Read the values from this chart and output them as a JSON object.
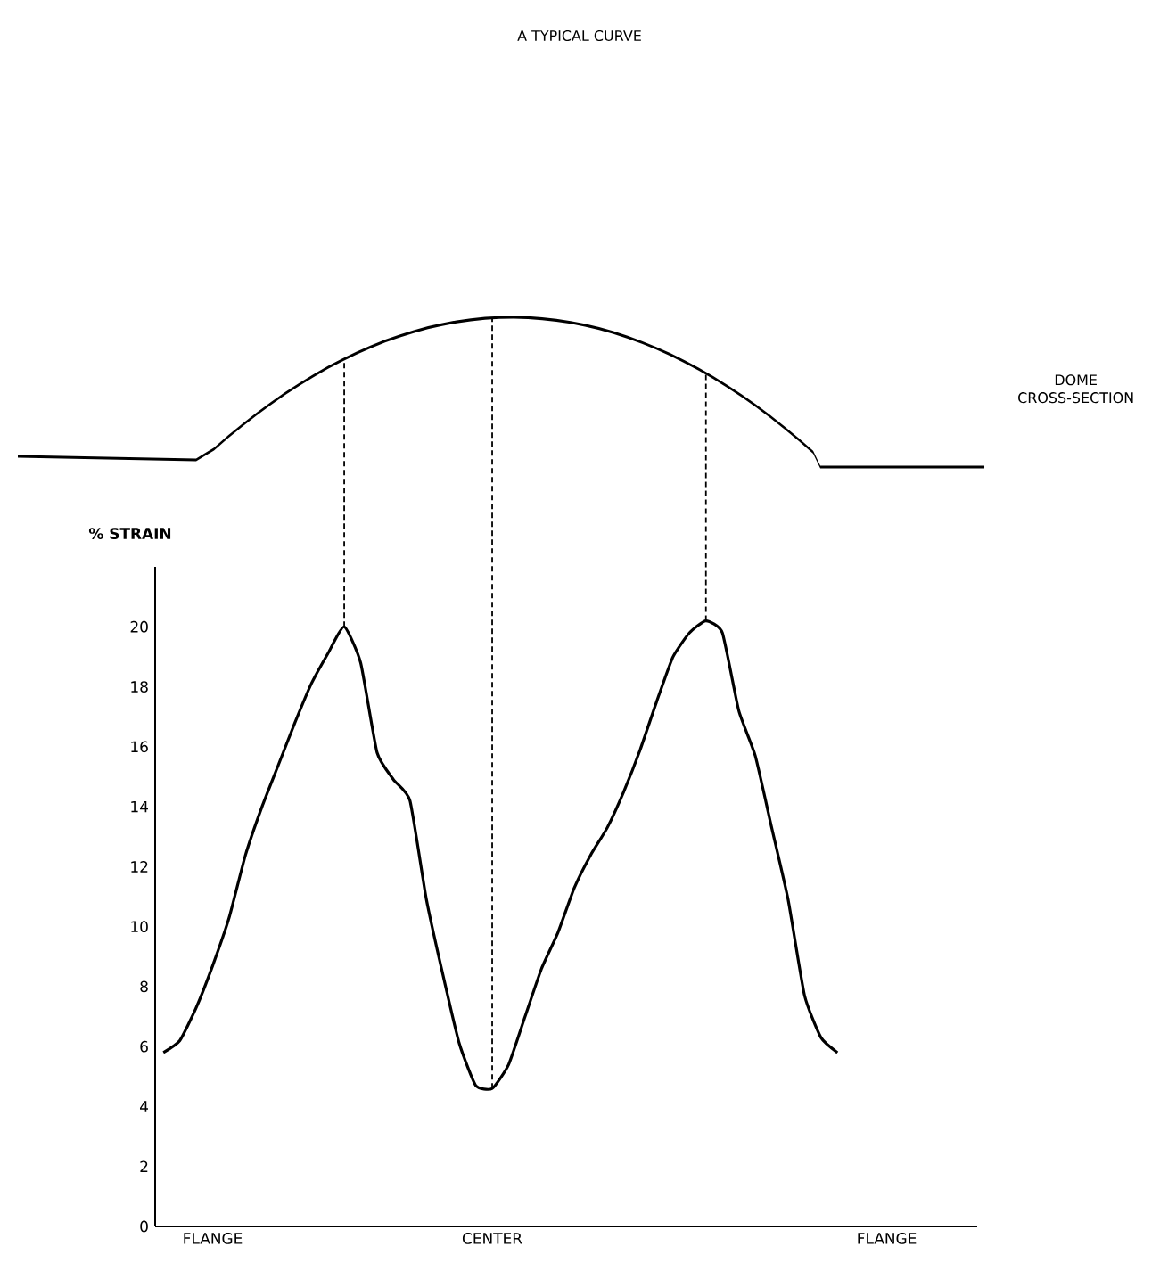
{
  "chart_data": {
    "type": "line",
    "title": "A TYPICAL CURVE",
    "ylabel": "% STRAIN",
    "annotations": [
      "DOME CROSS-SECTION"
    ],
    "categories": [
      null,
      null,
      null,
      "FLANGE",
      null,
      null,
      null,
      null,
      null,
      null,
      null,
      null,
      null,
      null,
      null,
      null,
      null,
      null,
      null,
      null,
      "CENTER",
      null,
      null,
      null,
      null,
      null,
      null,
      null,
      null,
      null,
      null,
      null,
      null,
      null,
      null,
      null,
      null,
      null,
      null,
      null,
      null,
      null,
      null,
      null,
      "FLANGE",
      null,
      null,
      null,
      null,
      null
    ],
    "series": [
      {
        "color": "#000000",
        "values": [
          5.8,
          6.2,
          7.3,
          8.7,
          10.3,
          12.4,
          14.0,
          15.4,
          16.8,
          18.1,
          19.1,
          20,
          18.8,
          15.8,
          14.9,
          14.2,
          10.9,
          8.4,
          6.1,
          4.7,
          4.6,
          5.4,
          7.0,
          8.6,
          9.8,
          11.3,
          12.4,
          13.3,
          14.5,
          15.9,
          17.5,
          19.0,
          19.8,
          20.2,
          19.8,
          17.2,
          15.7,
          13.3,
          10.9,
          7.7,
          6.3,
          5.8,
          null,
          null,
          null,
          null,
          null,
          null,
          null,
          null
        ]
      }
    ],
    "ylim": [
      0,
      22
    ],
    "yticks": [
      0,
      2,
      4,
      6,
      8,
      10,
      12,
      14,
      16,
      18,
      20
    ],
    "marker": "none",
    "line_style": "solid"
  }
}
